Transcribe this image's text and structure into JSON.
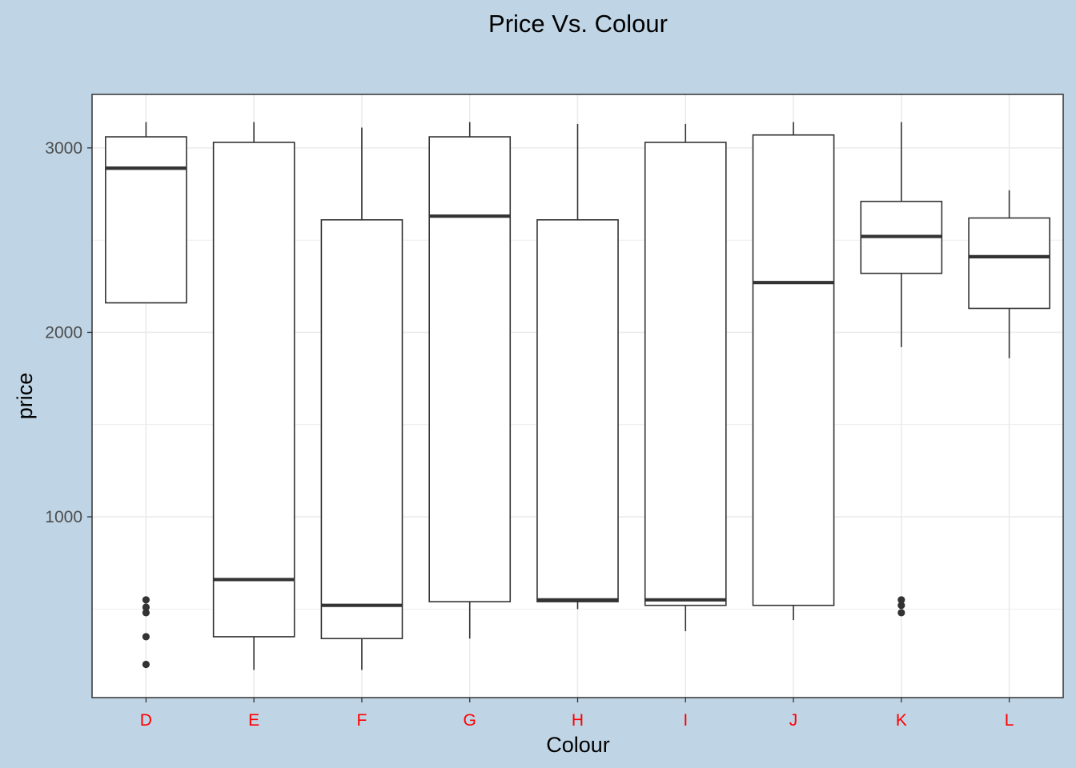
{
  "chart_data": {
    "type": "box",
    "title": "Price Vs. Colour",
    "xlabel": "Colour",
    "ylabel": "price",
    "ylim": [
      20,
      3290
    ],
    "yticks": [
      1000,
      2000,
      3000
    ],
    "grid": true,
    "legend": "none",
    "categories": [
      "D",
      "E",
      "F",
      "G",
      "H",
      "I",
      "J",
      "K",
      "L"
    ],
    "boxes": [
      {
        "category": "D",
        "whisker_low": 2160,
        "q1": 2160,
        "median": 2890,
        "q3": 3060,
        "whisker_high": 3140,
        "outliers": [
          200,
          350,
          480,
          510,
          550
        ]
      },
      {
        "category": "E",
        "whisker_low": 170,
        "q1": 350,
        "median": 660,
        "q3": 3030,
        "whisker_high": 3140,
        "outliers": []
      },
      {
        "category": "F",
        "whisker_low": 170,
        "q1": 340,
        "median": 520,
        "q3": 2610,
        "whisker_high": 3110,
        "outliers": []
      },
      {
        "category": "G",
        "whisker_low": 340,
        "q1": 540,
        "median": 2630,
        "q3": 3060,
        "whisker_high": 3140,
        "outliers": []
      },
      {
        "category": "H",
        "whisker_low": 500,
        "q1": 540,
        "median": 550,
        "q3": 2610,
        "whisker_high": 3130,
        "outliers": []
      },
      {
        "category": "I",
        "whisker_low": 380,
        "q1": 520,
        "median": 550,
        "q3": 3030,
        "whisker_high": 3130,
        "outliers": []
      },
      {
        "category": "J",
        "whisker_low": 440,
        "q1": 520,
        "median": 2270,
        "q3": 3070,
        "whisker_high": 3140,
        "outliers": []
      },
      {
        "category": "K",
        "whisker_low": 1920,
        "q1": 2320,
        "median": 2520,
        "q3": 2710,
        "whisker_high": 3140,
        "outliers": [
          480,
          520,
          550
        ]
      },
      {
        "category": "L",
        "whisker_low": 1860,
        "q1": 2130,
        "median": 2410,
        "q3": 2620,
        "whisker_high": 2770,
        "outliers": []
      }
    ]
  },
  "colors": {
    "background": "#bfd4e4",
    "panel": "#ffffff",
    "grid": "#ebebeb",
    "box_line": "#333333",
    "tick_label": "#4d4d4d",
    "category_label": "#ff0000"
  }
}
